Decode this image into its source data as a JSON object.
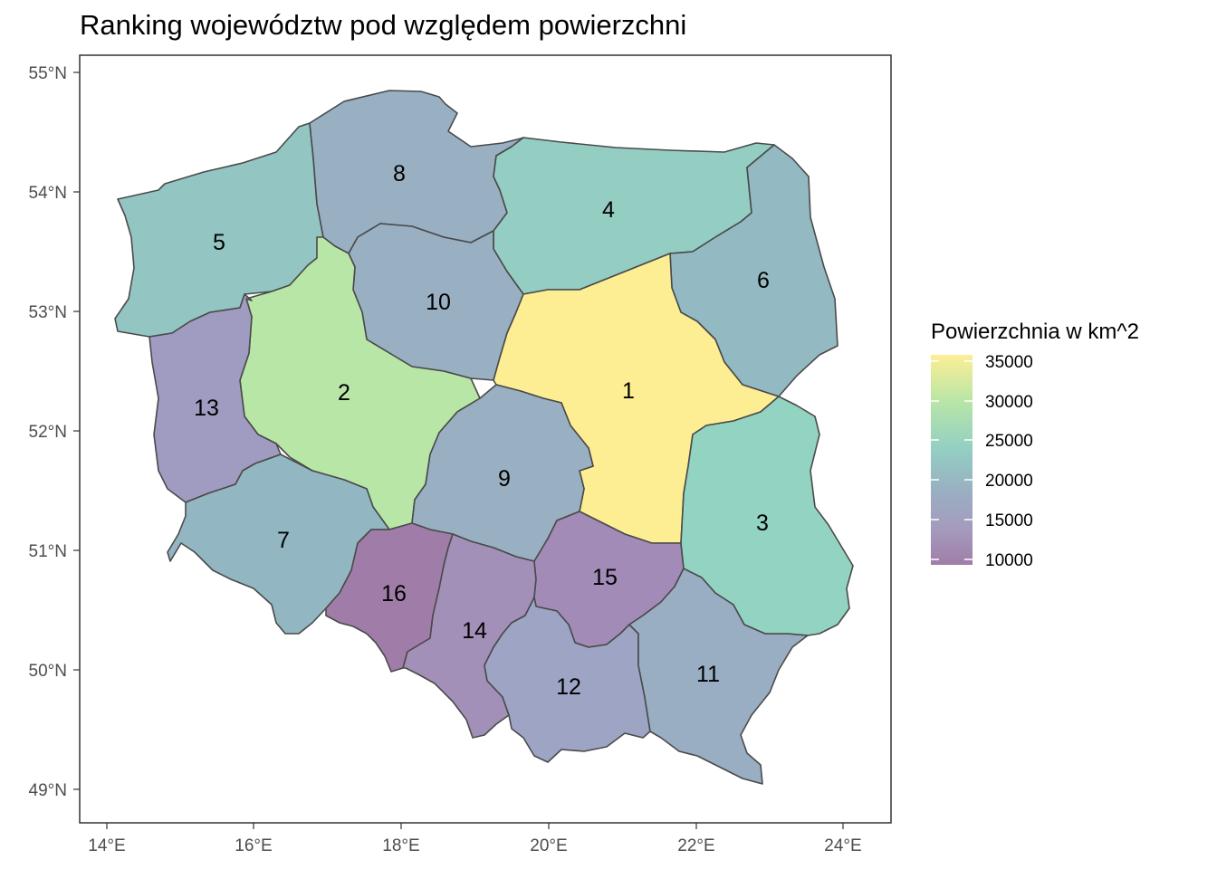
{
  "title": "Ranking województw pod względem powierzchni",
  "axes": {
    "y_ticks": [
      "55°N",
      "54°N",
      "53°N",
      "52°N",
      "51°N",
      "50°N",
      "49°N"
    ],
    "x_ticks": [
      "14°E",
      "16°E",
      "18°E",
      "20°E",
      "22°E",
      "24°E"
    ]
  },
  "legend": {
    "title": "Powierzchnia w km^2",
    "labels": [
      "35000",
      "30000",
      "25000",
      "20000",
      "15000",
      "10000"
    ],
    "colors": [
      "#fdee94",
      "#b8e6a7",
      "#93cfc3",
      "#99afc2",
      "#a59bbd",
      "#a07da8"
    ]
  },
  "chart_data": {
    "type": "choropleth",
    "regions": [
      {
        "rank": "1",
        "area_km2": 35558,
        "color": "#fdee94"
      },
      {
        "rank": "2",
        "area_km2": 29826,
        "color": "#b8e6a7"
      },
      {
        "rank": "3",
        "area_km2": 25122,
        "color": "#93d3c2"
      },
      {
        "rank": "4",
        "area_km2": 24173,
        "color": "#94cec3"
      },
      {
        "rank": "5",
        "area_km2": 22905,
        "color": "#93c6c2"
      },
      {
        "rank": "6",
        "area_km2": 20187,
        "color": "#93b9c2"
      },
      {
        "rank": "7",
        "area_km2": 19947,
        "color": "#93b7c2"
      },
      {
        "rank": "8",
        "area_km2": 18310,
        "color": "#99b0c3"
      },
      {
        "rank": "9",
        "area_km2": 18219,
        "color": "#99b0c2"
      },
      {
        "rank": "10",
        "area_km2": 17972,
        "color": "#99afc2"
      },
      {
        "rank": "11",
        "area_km2": 17846,
        "color": "#99aec3"
      },
      {
        "rank": "12",
        "area_km2": 15183,
        "color": "#9ea5c4"
      },
      {
        "rank": "13",
        "area_km2": 13988,
        "color": "#a09bc0"
      },
      {
        "rank": "14",
        "area_km2": 12333,
        "color": "#a290b8"
      },
      {
        "rank": "15",
        "area_km2": 11711,
        "color": "#a28bb6"
      },
      {
        "rank": "16",
        "area_km2": 9412,
        "color": "#a07da8"
      }
    ]
  }
}
